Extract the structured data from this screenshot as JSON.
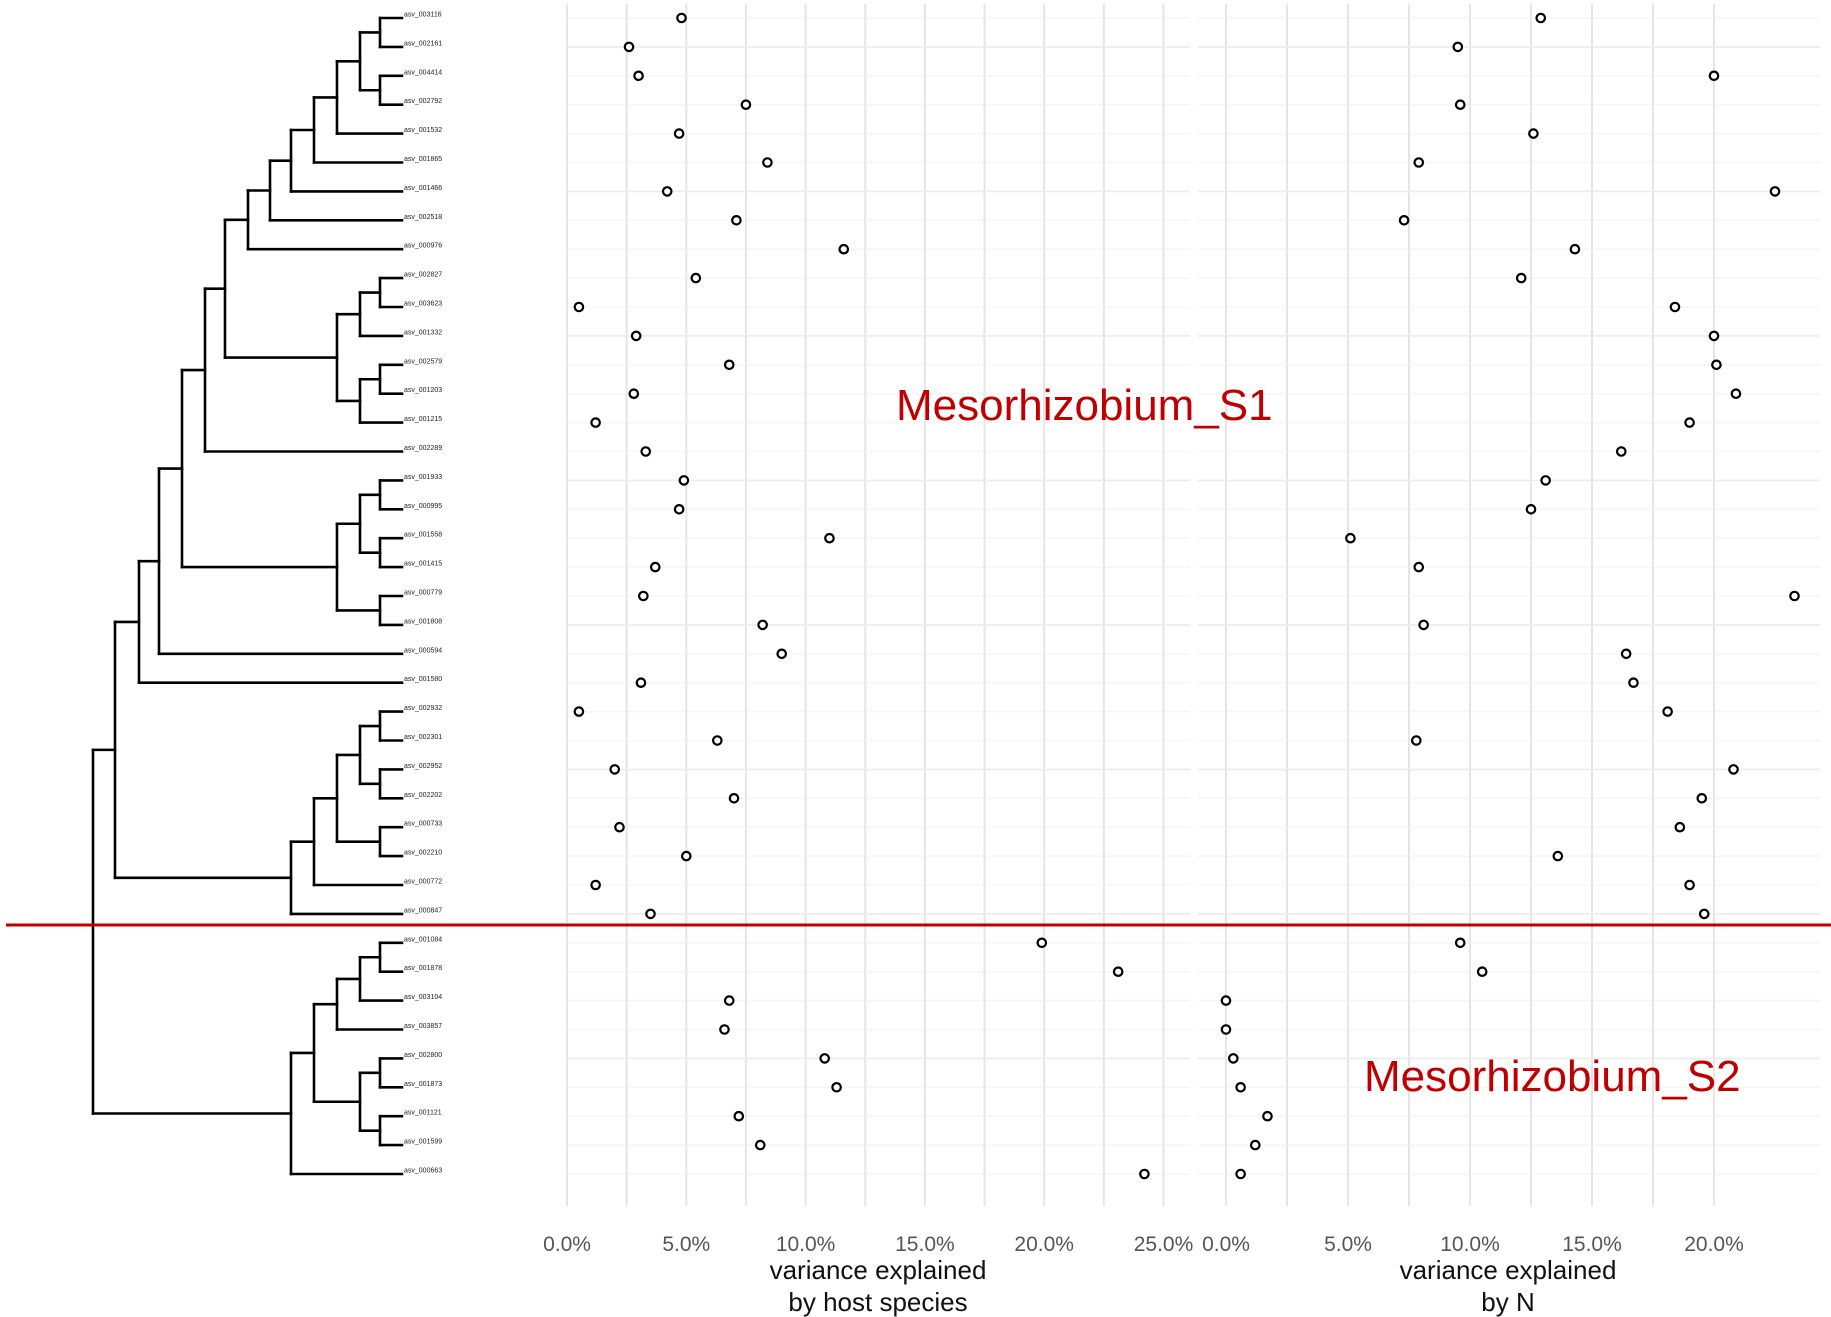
{
  "colors": {
    "divider": "#c00000",
    "clade_label": "#c00000",
    "points": "#000000",
    "grid": "#e5e5e5"
  },
  "clade_labels": {
    "s1": "Mesorhizobium_S1",
    "s2": "Mesorhizobium_S2"
  },
  "chart_data": [
    {
      "type": "scatter",
      "xlabel": "variance explained\nby host species",
      "xticks": [
        "0.0%",
        "5.0%",
        "10.0%",
        "15.0%",
        "20.0%",
        "25.0%"
      ],
      "xlim": [
        0,
        25
      ],
      "categories": [
        "asv_003116",
        "asv_002161",
        "asv_004414",
        "asv_002792",
        "asv_001532",
        "asv_001865",
        "asv_001466",
        "asv_002518",
        "asv_000976",
        "asv_002827",
        "asv_003623",
        "asv_001332",
        "asv_002579",
        "asv_001203",
        "asv_001215",
        "asv_002289",
        "asv_001933",
        "asv_000995",
        "asv_001558",
        "asv_001415",
        "asv_000779",
        "asv_001808",
        "asv_000594",
        "asv_001580",
        "asv_002932",
        "asv_002301",
        "asv_002952",
        "asv_002202",
        "asv_000733",
        "asv_002210",
        "asv_000772",
        "asv_000847",
        "asv_001084",
        "asv_001878",
        "asv_003104",
        "asv_003857",
        "asv_002800",
        "asv_001873",
        "asv_001121",
        "asv_001599",
        "asv_000663"
      ],
      "values": [
        4.8,
        2.6,
        3.0,
        7.5,
        4.7,
        8.4,
        4.2,
        7.1,
        11.6,
        5.4,
        0.5,
        2.9,
        6.8,
        2.8,
        1.2,
        3.3,
        4.9,
        4.7,
        11.0,
        3.7,
        3.2,
        8.2,
        9.0,
        3.1,
        0.5,
        6.3,
        2.0,
        7.0,
        2.2,
        5.0,
        1.2,
        3.5,
        19.9,
        23.1,
        6.8,
        6.6,
        10.8,
        11.3,
        7.2,
        8.1,
        24.2
      ]
    },
    {
      "type": "scatter",
      "xlabel": "variance explained\nby N",
      "xticks": [
        "0.0%",
        "5.0%",
        "10.0%",
        "15.0%",
        "20.0%"
      ],
      "xlim": [
        0,
        24
      ],
      "categories": [
        "asv_003116",
        "asv_002161",
        "asv_004414",
        "asv_002792",
        "asv_001532",
        "asv_001865",
        "asv_001466",
        "asv_002518",
        "asv_000976",
        "asv_002827",
        "asv_003623",
        "asv_001332",
        "asv_002579",
        "asv_001203",
        "asv_001215",
        "asv_002289",
        "asv_001933",
        "asv_000995",
        "asv_001558",
        "asv_001415",
        "asv_000779",
        "asv_001808",
        "asv_000594",
        "asv_001580",
        "asv_002932",
        "asv_002301",
        "asv_002952",
        "asv_002202",
        "asv_000733",
        "asv_002210",
        "asv_000772",
        "asv_000847",
        "asv_001084",
        "asv_001878",
        "asv_003104",
        "asv_003857",
        "asv_002800",
        "asv_001873",
        "asv_001121",
        "asv_001599",
        "asv_000663"
      ],
      "values": [
        12.9,
        9.5,
        20.0,
        9.6,
        12.6,
        7.9,
        22.5,
        7.3,
        14.3,
        12.1,
        18.4,
        20.0,
        20.1,
        20.9,
        19.0,
        16.2,
        13.1,
        12.5,
        5.1,
        7.9,
        23.3,
        8.1,
        16.4,
        16.7,
        18.1,
        7.8,
        20.8,
        19.5,
        18.6,
        13.6,
        19.0,
        19.6,
        9.6,
        10.5,
        0.0,
        0.0,
        0.3,
        0.6,
        1.7,
        1.2,
        0.6
      ]
    }
  ]
}
